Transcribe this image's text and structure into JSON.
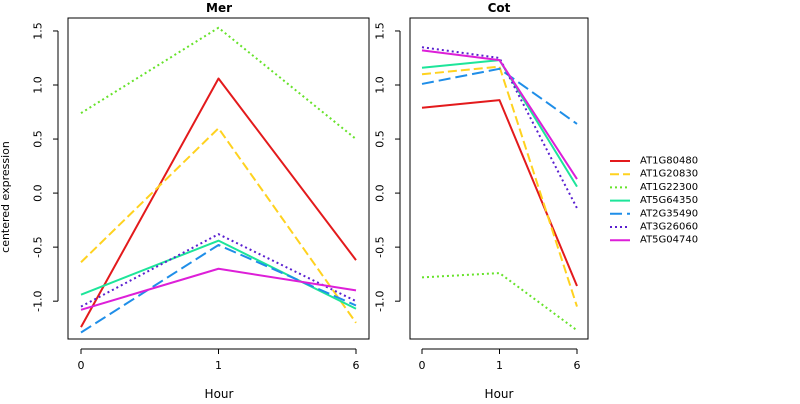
{
  "shared": {
    "ylabel": "centered expression",
    "xlabel": "Hour"
  },
  "legend": {
    "position": "right",
    "entries": [
      {
        "name": "AT1G80480",
        "color": "#e31a1c",
        "dash": "solid"
      },
      {
        "name": "AT1G20830",
        "color": "#ffd21f",
        "dash": "dashed"
      },
      {
        "name": "AT1G22300",
        "color": "#66e22a",
        "dash": "dotted"
      },
      {
        "name": "AT5G64350",
        "color": "#1de59a",
        "dash": "solid"
      },
      {
        "name": "AT2G35490",
        "color": "#1f8ee8",
        "dash": "longdash"
      },
      {
        "name": "AT3G26060",
        "color": "#5a1fd0",
        "dash": "dotted"
      },
      {
        "name": "AT5G04740",
        "color": "#dd1fd8",
        "dash": "solid"
      }
    ]
  },
  "chart_data": [
    {
      "type": "line",
      "title": "Mer",
      "x": [
        "0",
        "1",
        "6"
      ],
      "xlabel": "Hour",
      "ylabel": "centered expression",
      "ylim": [
        -1.35,
        1.62
      ],
      "yticks": [
        "-1.0",
        "-0.5",
        "0.0",
        "0.5",
        "1.0",
        "1.5"
      ],
      "grid": false,
      "series": [
        {
          "name": "AT1G80480",
          "values": [
            -1.24,
            1.06,
            -0.62
          ]
        },
        {
          "name": "AT1G20830",
          "values": [
            -0.64,
            0.6,
            -1.2
          ]
        },
        {
          "name": "AT1G22300",
          "values": [
            0.74,
            1.53,
            0.5
          ]
        },
        {
          "name": "AT5G64350",
          "values": [
            -0.94,
            -0.44,
            -1.07
          ]
        },
        {
          "name": "AT2G35490",
          "values": [
            -1.29,
            -0.48,
            -1.04
          ]
        },
        {
          "name": "AT3G26060",
          "values": [
            -1.05,
            -0.38,
            -1.0
          ]
        },
        {
          "name": "AT5G04740",
          "values": [
            -1.08,
            -0.7,
            -0.9
          ]
        }
      ]
    },
    {
      "type": "line",
      "title": "Cot",
      "x": [
        "0",
        "1",
        "6"
      ],
      "xlabel": "Hour",
      "ylim": [
        -1.35,
        1.62
      ],
      "yticks": [
        "-1.0",
        "-0.5",
        "0.0",
        "0.5",
        "1.0",
        "1.5"
      ],
      "grid": false,
      "series": [
        {
          "name": "AT1G80480",
          "values": [
            0.79,
            0.86,
            -0.86
          ]
        },
        {
          "name": "AT1G20830",
          "values": [
            1.1,
            1.17,
            -1.05
          ]
        },
        {
          "name": "AT1G22300",
          "values": [
            -0.78,
            -0.74,
            -1.27
          ]
        },
        {
          "name": "AT5G64350",
          "values": [
            1.16,
            1.23,
            0.06
          ]
        },
        {
          "name": "AT2G35490",
          "values": [
            1.01,
            1.15,
            0.64
          ]
        },
        {
          "name": "AT3G26060",
          "values": [
            1.35,
            1.25,
            -0.14
          ]
        },
        {
          "name": "AT5G04740",
          "values": [
            1.32,
            1.23,
            0.13
          ]
        }
      ]
    }
  ]
}
